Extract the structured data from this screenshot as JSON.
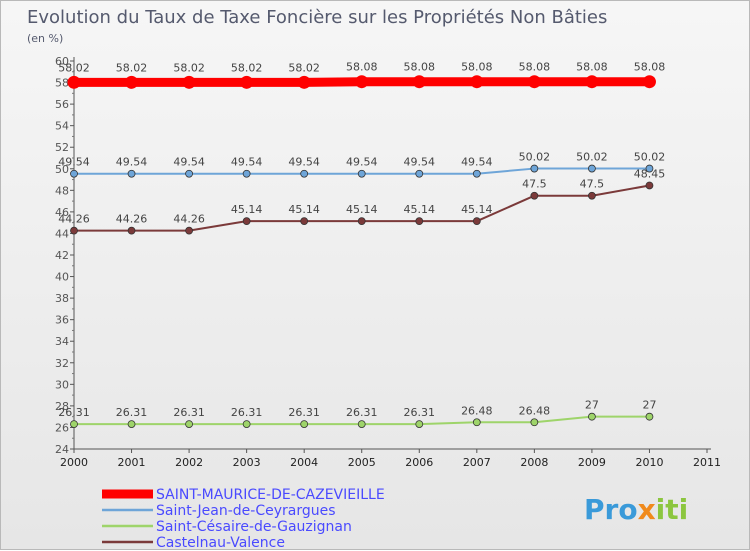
{
  "chart_data": {
    "type": "line",
    "title": "Evolution du Taux de Taxe Foncière sur les Propriétés Non Bâties",
    "subtitle": "(en %)",
    "x": [
      2000,
      2001,
      2002,
      2003,
      2004,
      2005,
      2006,
      2007,
      2008,
      2009,
      2010,
      2011
    ],
    "x_labels": [
      "2000",
      "2001",
      "2002",
      "2003",
      "2004",
      "2005",
      "2006",
      "2007",
      "2008",
      "2009",
      "2010",
      "2011"
    ],
    "ylim": [
      24,
      60
    ],
    "yticks": [
      "24",
      "26",
      "28",
      "30",
      "32",
      "34",
      "36",
      "38",
      "40",
      "42",
      "44",
      "46",
      "48",
      "50",
      "52",
      "54",
      "56",
      "58",
      "60"
    ],
    "grid": false,
    "series": [
      {
        "name": "SAINT-MAURICE-DE-CAZEVIEILLE",
        "color": "#ff0000",
        "x": [
          2000,
          2001,
          2002,
          2003,
          2004,
          2005,
          2006,
          2007,
          2008,
          2009,
          2010
        ],
        "values": [
          58.02,
          58.02,
          58.02,
          58.02,
          58.02,
          58.08,
          58.08,
          58.08,
          58.08,
          58.08,
          58.08
        ],
        "labels": [
          "58.02",
          "58.02",
          "58.02",
          "58.02",
          "58.02",
          "58.08",
          "58.08",
          "58.08",
          "58.08",
          "58.08",
          "58.08"
        ]
      },
      {
        "name": "Saint-Jean-de-Ceyrargues",
        "color": "#6ea5d8",
        "x": [
          2000,
          2001,
          2002,
          2003,
          2004,
          2005,
          2006,
          2007,
          2008,
          2009,
          2010
        ],
        "values": [
          49.54,
          49.54,
          49.54,
          49.54,
          49.54,
          49.54,
          49.54,
          49.54,
          50.02,
          50.02,
          50.02
        ],
        "labels": [
          "49.54",
          "49.54",
          "49.54",
          "49.54",
          "49.54",
          "49.54",
          "49.54",
          "49.54",
          "50.02",
          "50.02",
          "50.02"
        ]
      },
      {
        "name": "Saint-Césaire-de-Gauzignan",
        "color": "#9ed46a",
        "x": [
          2000,
          2001,
          2002,
          2003,
          2004,
          2005,
          2006,
          2007,
          2008,
          2009,
          2010
        ],
        "values": [
          26.31,
          26.31,
          26.31,
          26.31,
          26.31,
          26.31,
          26.31,
          26.48,
          26.48,
          27,
          27
        ],
        "labels": [
          "26.31",
          "26.31",
          "26.31",
          "26.31",
          "26.31",
          "26.31",
          "26.31",
          "26.48",
          "26.48",
          "27",
          "27"
        ]
      },
      {
        "name": "Castelnau-Valence",
        "color": "#7b3a3a",
        "x": [
          2000,
          2001,
          2002,
          2003,
          2004,
          2005,
          2006,
          2007,
          2008,
          2009,
          2010
        ],
        "values": [
          44.26,
          44.26,
          44.26,
          45.14,
          45.14,
          45.14,
          45.14,
          45.14,
          47.5,
          47.5,
          48.45
        ],
        "labels": [
          "44.26",
          "44.26",
          "44.26",
          "45.14",
          "45.14",
          "45.14",
          "45.14",
          "45.14",
          "47.5",
          "47.5",
          "48.45"
        ]
      }
    ],
    "legend": "bottom-left"
  },
  "logo": {
    "parts": [
      "Pro",
      "x",
      "iti"
    ],
    "colors": [
      "#3a9ad9",
      "#f08a1c",
      "#8cc63f"
    ]
  }
}
